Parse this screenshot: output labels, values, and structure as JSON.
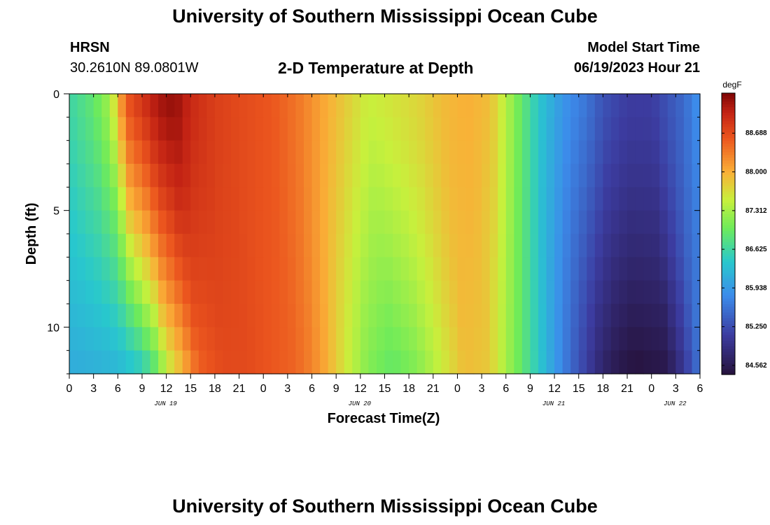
{
  "header": {
    "title": "University of Southern Mississippi Ocean Cube",
    "station": "HRSN",
    "coords": "30.2610N  89.0801W",
    "subtitle": "2-D Temperature at Depth",
    "model_start_label": "Model Start Time",
    "model_start_value": "06/19/2023 Hour 21"
  },
  "footer": {
    "title": "University of Southern Mississippi Ocean Cube"
  },
  "chart_data": {
    "type": "heatmap",
    "title": "2-D Temperature at Depth",
    "xlabel": "Forecast Time(Z)",
    "ylabel": "Depth (ft)",
    "units": "degF",
    "x_ticks": [
      "0",
      "3",
      "6",
      "9",
      "12",
      "15",
      "18",
      "21",
      "0",
      "3",
      "6",
      "9",
      "12",
      "15",
      "18",
      "21",
      "0",
      "3",
      "6",
      "9",
      "12",
      "15",
      "18",
      "21",
      "0",
      "3",
      "6"
    ],
    "date_labels": [
      {
        "label": "JUN 19",
        "hour": 12
      },
      {
        "label": "JUN 20",
        "hour": 36
      },
      {
        "label": "JUN 21",
        "hour": 60
      },
      {
        "label": "JUN 22",
        "hour": 75
      }
    ],
    "y_ticks": [
      0,
      5,
      10
    ],
    "y_range": [
      0,
      12
    ],
    "x_range_hours": [
      0,
      78
    ],
    "colorbar": {
      "min": 84.4,
      "max": 89.4,
      "tick_values": [
        "88.688",
        "88.000",
        "87.312",
        "86.625",
        "85.938",
        "85.250",
        "84.562"
      ]
    },
    "surface_profile": {
      "hours": [
        0,
        3,
        5,
        6,
        7,
        9,
        11,
        13,
        15,
        18,
        21,
        25,
        28,
        30,
        32,
        34,
        37,
        40,
        43,
        46,
        49,
        52,
        54,
        56,
        58,
        61,
        64,
        66,
        69,
        72,
        76,
        78
      ],
      "temps": [
        86.6,
        86.9,
        87.3,
        87.9,
        88.6,
        88.9,
        89.2,
        89.3,
        89.0,
        88.8,
        88.7,
        88.6,
        88.4,
        88.2,
        88.0,
        87.8,
        87.5,
        87.6,
        87.7,
        87.9,
        88.0,
        87.9,
        87.4,
        86.9,
        86.4,
        85.9,
        85.6,
        85.3,
        85.1,
        85.1,
        85.5,
        85.9
      ]
    },
    "bottom_profile": {
      "hours": [
        0,
        6,
        9,
        11,
        12,
        14,
        16,
        19,
        22,
        25,
        28,
        30,
        32,
        34,
        37,
        40,
        43,
        46,
        49,
        52,
        54,
        56,
        59,
        62,
        66,
        68,
        70,
        74,
        76,
        78
      ],
      "temps": [
        86.1,
        86.2,
        86.4,
        86.9,
        87.4,
        87.9,
        88.5,
        88.7,
        88.7,
        88.6,
        88.5,
        88.3,
        88.0,
        87.6,
        87.1,
        86.9,
        87.1,
        87.5,
        87.9,
        87.8,
        87.3,
        86.9,
        86.2,
        85.5,
        84.7,
        84.5,
        84.4,
        84.5,
        85.0,
        85.6
      ]
    }
  }
}
